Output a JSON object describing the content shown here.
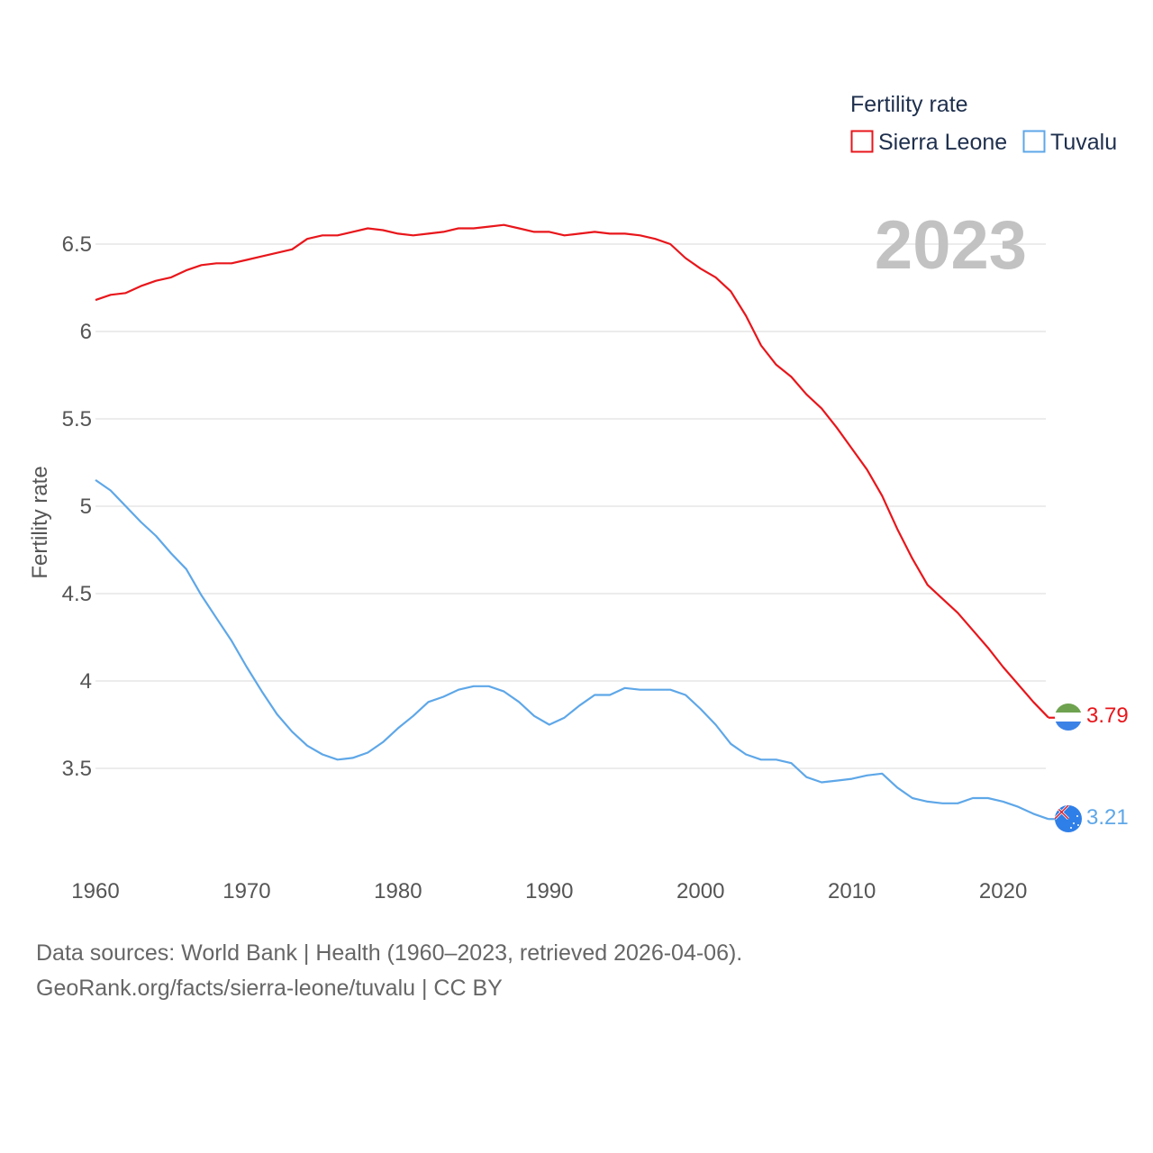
{
  "chart_data": {
    "type": "line",
    "ylabel": "Fertility rate",
    "xlabel": "",
    "xlim": [
      1960,
      2023
    ],
    "ylim": [
      3.0,
      6.75
    ],
    "y_ticks": [
      3.5,
      4,
      4.5,
      5,
      5.5,
      6,
      6.5
    ],
    "y_tick_labels": [
      "3.5",
      "4",
      "4.5",
      "5",
      "5.5",
      "6",
      "6.5"
    ],
    "x_ticks": [
      1960,
      1970,
      1980,
      1990,
      2000,
      2010,
      2020
    ],
    "x_tick_labels": [
      "1960",
      "1970",
      "1980",
      "1990",
      "2000",
      "2010",
      "2020"
    ],
    "grid": true,
    "year_label": "2023",
    "legend": {
      "title": "Fertility rate",
      "position": "top-right"
    },
    "x": [
      1960,
      1961,
      1962,
      1963,
      1964,
      1965,
      1966,
      1967,
      1968,
      1969,
      1970,
      1971,
      1972,
      1973,
      1974,
      1975,
      1976,
      1977,
      1978,
      1979,
      1980,
      1981,
      1982,
      1983,
      1984,
      1985,
      1986,
      1987,
      1988,
      1989,
      1990,
      1991,
      1992,
      1993,
      1994,
      1995,
      1996,
      1997,
      1998,
      1999,
      2000,
      2001,
      2002,
      2003,
      2004,
      2005,
      2006,
      2007,
      2008,
      2009,
      2010,
      2011,
      2012,
      2013,
      2014,
      2015,
      2016,
      2017,
      2018,
      2019,
      2020,
      2021,
      2022,
      2023
    ],
    "series": [
      {
        "name": "Sierra Leone",
        "color": "#e8161b",
        "end_label": "3.79",
        "values": [
          6.18,
          6.21,
          6.22,
          6.26,
          6.29,
          6.31,
          6.35,
          6.38,
          6.39,
          6.39,
          6.41,
          6.43,
          6.45,
          6.47,
          6.53,
          6.55,
          6.55,
          6.57,
          6.59,
          6.58,
          6.56,
          6.55,
          6.56,
          6.57,
          6.59,
          6.59,
          6.6,
          6.61,
          6.59,
          6.57,
          6.57,
          6.55,
          6.56,
          6.57,
          6.56,
          6.56,
          6.55,
          6.53,
          6.5,
          6.42,
          6.36,
          6.31,
          6.23,
          6.09,
          5.92,
          5.81,
          5.74,
          5.64,
          5.56,
          5.45,
          5.33,
          5.21,
          5.06,
          4.87,
          4.7,
          4.55,
          4.47,
          4.39,
          4.29,
          4.19,
          4.08,
          3.98,
          3.88,
          3.79
        ]
      },
      {
        "name": "Tuvalu",
        "color": "#5ea7e8",
        "end_label": "3.21",
        "values": [
          5.15,
          5.09,
          5.0,
          4.91,
          4.83,
          4.73,
          4.64,
          4.49,
          4.36,
          4.23,
          4.08,
          3.94,
          3.81,
          3.71,
          3.63,
          3.58,
          3.55,
          3.56,
          3.59,
          3.65,
          3.73,
          3.8,
          3.88,
          3.91,
          3.95,
          3.97,
          3.97,
          3.94,
          3.88,
          3.8,
          3.75,
          3.79,
          3.86,
          3.92,
          3.92,
          3.96,
          3.95,
          3.95,
          3.95,
          3.92,
          3.84,
          3.75,
          3.64,
          3.58,
          3.55,
          3.55,
          3.53,
          3.45,
          3.42,
          3.43,
          3.44,
          3.46,
          3.47,
          3.39,
          3.33,
          3.31,
          3.3,
          3.3,
          3.33,
          3.33,
          3.31,
          3.28,
          3.24,
          3.21
        ]
      }
    ]
  },
  "footer": {
    "line1": "Data sources: World Bank | Health (1960–2023, retrieved 2026-04-06).",
    "line2": "GeoRank.org/facts/sierra-leone/tuvalu | CC BY"
  },
  "flags": {
    "sierra_leone": [
      "#6ea24f",
      "#ffffff",
      "#3b82e6"
    ],
    "tuvalu": {
      "field": "#2f7fe8",
      "union_red": "#d1192a",
      "union_white": "#ffffff"
    }
  }
}
